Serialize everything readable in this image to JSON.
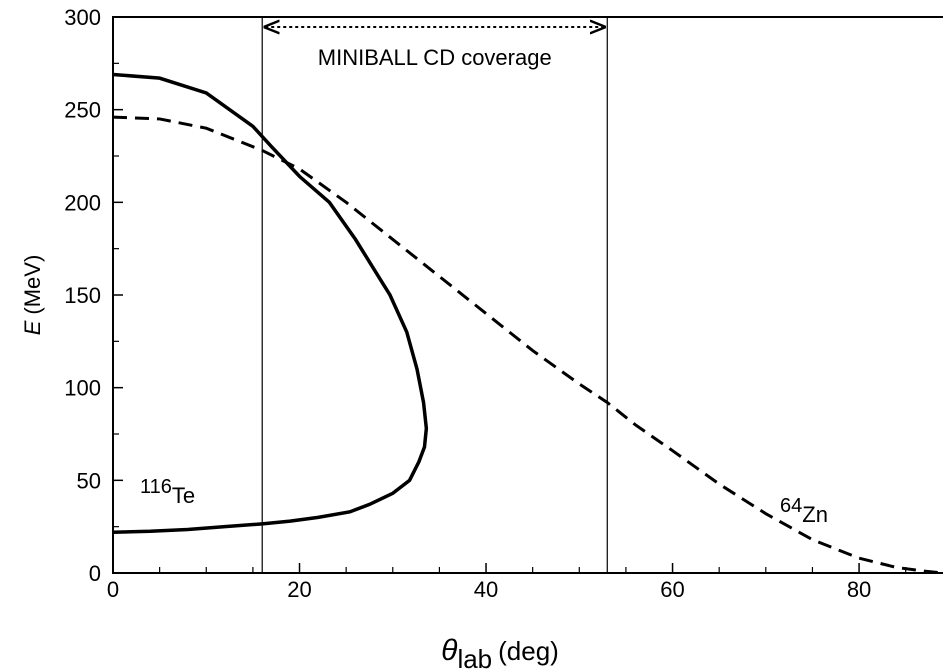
{
  "chart_data": {
    "type": "line",
    "x_label": {
      "symbol": "θ",
      "subscript": "lab",
      "unit": "(deg)"
    },
    "y_label": {
      "symbol": "E",
      "unit": "(MeV)"
    },
    "xlim": [
      0,
      89
    ],
    "ylim": [
      0,
      300
    ],
    "xticks": [
      0,
      20,
      40,
      60,
      80
    ],
    "yticks": [
      0,
      50,
      100,
      150,
      200,
      250,
      300
    ],
    "xticks_minor": [
      5,
      10,
      15,
      25,
      30,
      35,
      45,
      50,
      55,
      65,
      70,
      75,
      85
    ],
    "yticks_minor": [
      25,
      75,
      125,
      175,
      225,
      275
    ],
    "series": [
      {
        "name": {
          "mass": "116",
          "element": "Te"
        },
        "color": "#000000",
        "dash": "solid",
        "x": [
          0,
          5,
          10,
          15,
          17,
          20,
          23.2,
          26,
          29.7,
          31.5,
          32.6,
          33.3,
          33.6,
          33.4,
          32.8,
          31.8,
          30,
          27.5,
          25.4,
          22,
          19,
          16,
          12,
          8,
          4,
          0
        ],
        "values": [
          269,
          267,
          259,
          241,
          230,
          214,
          200,
          180,
          150,
          130,
          110,
          92,
          78,
          68,
          60,
          50,
          43,
          37,
          33,
          30,
          28,
          26.5,
          25,
          23.5,
          22.5,
          22
        ]
      },
      {
        "name": {
          "mass": "64",
          "element": "Zn"
        },
        "color": "#000000",
        "dash": "dashed",
        "x": [
          0,
          5,
          10,
          16,
          20,
          25,
          30,
          35,
          40,
          45,
          50,
          53,
          56,
          60,
          65,
          70,
          75,
          80,
          84,
          87,
          89
        ],
        "values": [
          246,
          245,
          240,
          228,
          218,
          200,
          180,
          160,
          140,
          120,
          102,
          92,
          80,
          66,
          48,
          32,
          18,
          8,
          3,
          1,
          0
        ]
      }
    ],
    "vlines": [
      16,
      53
    ],
    "coverage": {
      "text": "MINIBALL CD coverage",
      "x": [
        16,
        53
      ]
    }
  }
}
